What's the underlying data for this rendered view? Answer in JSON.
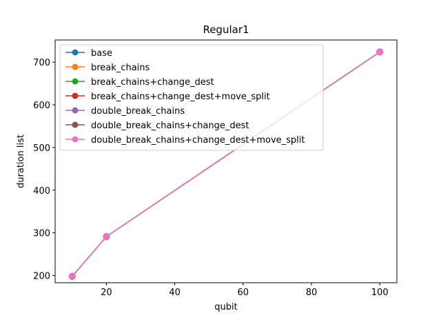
{
  "chart_data": {
    "type": "line",
    "title": "Regular1",
    "xlabel": "qubit",
    "ylabel": "duration list",
    "x": [
      10,
      20,
      100
    ],
    "xlim": [
      5,
      105
    ],
    "ylim": [
      183,
      752
    ],
    "xticks": [
      20,
      40,
      60,
      80,
      100
    ],
    "yticks": [
      200,
      300,
      400,
      500,
      600,
      700
    ],
    "grid": false,
    "legend_position": "upper-left",
    "series": [
      {
        "name": "base",
        "color": "#1f77b4",
        "values": [
          198,
          291,
          724
        ]
      },
      {
        "name": "break_chains",
        "color": "#ff7f0e",
        "values": [
          198,
          291,
          724
        ]
      },
      {
        "name": "break_chains+change_dest",
        "color": "#2ca02c",
        "values": [
          198,
          291,
          724
        ]
      },
      {
        "name": "break_chains+change_dest+move_split",
        "color": "#d62728",
        "values": [
          198,
          291,
          724
        ]
      },
      {
        "name": "double_break_chains",
        "color": "#9467bd",
        "values": [
          198,
          291,
          724
        ]
      },
      {
        "name": "double_break_chains+change_dest",
        "color": "#8c564b",
        "values": [
          198,
          291,
          724
        ]
      },
      {
        "name": "double_break_chains+change_dest+move_split",
        "color": "#e377c2",
        "values": [
          198,
          291,
          724
        ]
      }
    ]
  }
}
